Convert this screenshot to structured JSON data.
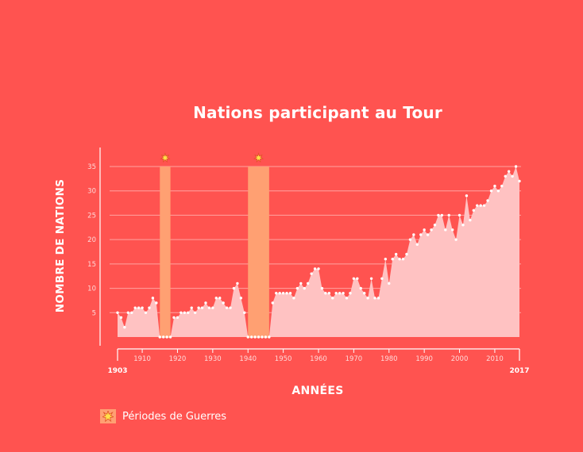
{
  "colors": {
    "background": "#ff5350",
    "area": "#ffc2c2",
    "war_band": "#ffa072",
    "gridline": "#ffa3a1",
    "point": "#ffffff",
    "text": "#ffffff"
  },
  "legend": {
    "label": "Périodes de Guerres",
    "icon": "explosion-icon"
  },
  "chart_data": {
    "type": "area",
    "title": "Nations participant au Tour",
    "xlabel": "ANNÉES",
    "ylabel": "NOMBRE DE NATIONS",
    "xlim": [
      1903,
      2017
    ],
    "ylim": [
      0,
      35
    ],
    "yticks": [
      5,
      10,
      15,
      20,
      25,
      30,
      35
    ],
    "xticks": [
      1910,
      1920,
      1930,
      1940,
      1950,
      1960,
      1970,
      1980,
      1990,
      2000,
      2010
    ],
    "xtick_labels": [
      "1910",
      "1920",
      "1930",
      "1940",
      "1950",
      "1960",
      "1970",
      "1980",
      "1990",
      "2000",
      "2010"
    ],
    "edge_labels": [
      "1903",
      "2017"
    ],
    "grid": true,
    "war_periods": [
      [
        1915,
        1918
      ],
      [
        1940,
        1946
      ]
    ],
    "series": [
      {
        "x": [
          1903,
          1904,
          1905,
          1906,
          1907,
          1908,
          1909,
          1910,
          1911,
          1912,
          1913,
          1914,
          1915,
          1916,
          1917,
          1918,
          1919,
          1920,
          1921,
          1922,
          1923,
          1924,
          1925,
          1926,
          1927,
          1928,
          1929,
          1930,
          1931,
          1932,
          1933,
          1934,
          1935,
          1936,
          1937,
          1938,
          1939,
          1940,
          1941,
          1942,
          1943,
          1944,
          1945,
          1946,
          1947,
          1948,
          1949,
          1950,
          1951,
          1952,
          1953,
          1954,
          1955,
          1956,
          1957,
          1958,
          1959,
          1960,
          1961,
          1962,
          1963,
          1964,
          1965,
          1966,
          1967,
          1968,
          1969,
          1970,
          1971,
          1972,
          1973,
          1974,
          1975,
          1976,
          1977,
          1978,
          1979,
          1980,
          1981,
          1982,
          1983,
          1984,
          1985,
          1986,
          1987,
          1988,
          1989,
          1990,
          1991,
          1992,
          1993,
          1994,
          1995,
          1996,
          1997,
          1998,
          1999,
          2000,
          2001,
          2002,
          2003,
          2004,
          2005,
          2006,
          2007,
          2008,
          2009,
          2010,
          2011,
          2012,
          2013,
          2014,
          2015,
          2016,
          2017
        ],
        "values": [
          5,
          4,
          2,
          5,
          5,
          6,
          6,
          6,
          5,
          6,
          8,
          7,
          0,
          0,
          0,
          0,
          4,
          4,
          5,
          5,
          5,
          6,
          5,
          6,
          6,
          7,
          6,
          6,
          8,
          8,
          7,
          6,
          6,
          10,
          11,
          8,
          5,
          0,
          0,
          0,
          0,
          0,
          0,
          0,
          7,
          9,
          9,
          9,
          9,
          9,
          8,
          10,
          11,
          10,
          11,
          13,
          14,
          14,
          10,
          9,
          9,
          8,
          9,
          9,
          9,
          8,
          9,
          12,
          12,
          10,
          9,
          8,
          12,
          8,
          8,
          12,
          16,
          11,
          16,
          17,
          16,
          16,
          17,
          20,
          21,
          19,
          21,
          22,
          21,
          22,
          23,
          25,
          25,
          22,
          25,
          22,
          20,
          25,
          23,
          29,
          24,
          26,
          27,
          27,
          27,
          28,
          30,
          31,
          30,
          31,
          33,
          34,
          33,
          35,
          32
        ]
      }
    ]
  }
}
